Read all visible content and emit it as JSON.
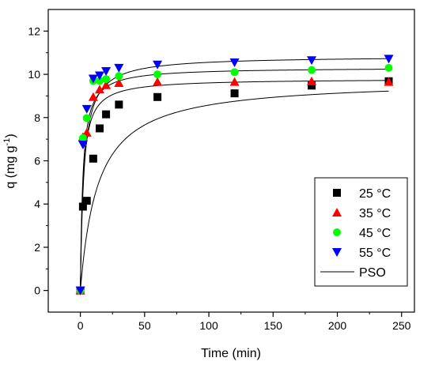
{
  "chart_data": {
    "type": "scatter",
    "title": "",
    "xlabel": "Time (min)",
    "ylabel_main": "q (mg g",
    "ylabel_sup": "-1",
    "ylabel_close": ")",
    "xlim": [
      -25,
      260
    ],
    "ylim": [
      -1,
      13
    ],
    "xticks": [
      0,
      50,
      100,
      150,
      200,
      250
    ],
    "yticks": [
      0,
      2,
      4,
      6,
      8,
      10,
      12
    ],
    "grid": false,
    "legend_position": "bottom-right",
    "series": [
      {
        "name": "25 °C",
        "marker": "square",
        "color": "#000000",
        "x": [
          0,
          2,
          5,
          10,
          15,
          20,
          30,
          60,
          120,
          180,
          240
        ],
        "y": [
          0,
          3.88,
          4.15,
          6.1,
          7.5,
          8.15,
          8.6,
          8.95,
          9.12,
          9.48,
          9.68
        ]
      },
      {
        "name": "35 °C",
        "marker": "triangle-up",
        "color": "#ff0000",
        "x": [
          0,
          2,
          5,
          10,
          15,
          20,
          30,
          60,
          120,
          180,
          240
        ],
        "y": [
          0,
          7.1,
          7.3,
          8.95,
          9.3,
          9.5,
          9.6,
          9.65,
          9.65,
          9.68,
          9.65
        ]
      },
      {
        "name": "45 °C",
        "marker": "circle",
        "color": "#00ff00",
        "x": [
          0,
          2,
          5,
          10,
          15,
          20,
          30,
          60,
          120,
          180,
          240
        ],
        "y": [
          0,
          7.05,
          7.98,
          9.7,
          9.7,
          9.78,
          9.92,
          10.0,
          10.1,
          10.2,
          10.3
        ]
      },
      {
        "name": "55 °C",
        "marker": "triangle-down",
        "color": "#0000ff",
        "x": [
          0,
          2,
          5,
          10,
          15,
          20,
          30,
          60,
          120,
          180,
          240
        ],
        "y": [
          0,
          6.75,
          8.4,
          9.8,
          9.95,
          10.15,
          10.3,
          10.45,
          10.55,
          10.65,
          10.72
        ]
      }
    ],
    "fit": {
      "name": "PSO",
      "color": "#000000",
      "curves": [
        {
          "qe": 9.75,
          "k": 0.0075
        },
        {
          "qe": 9.8,
          "k": 0.05
        },
        {
          "qe": 10.32,
          "k": 0.05
        },
        {
          "qe": 10.85,
          "k": 0.033
        }
      ]
    }
  }
}
